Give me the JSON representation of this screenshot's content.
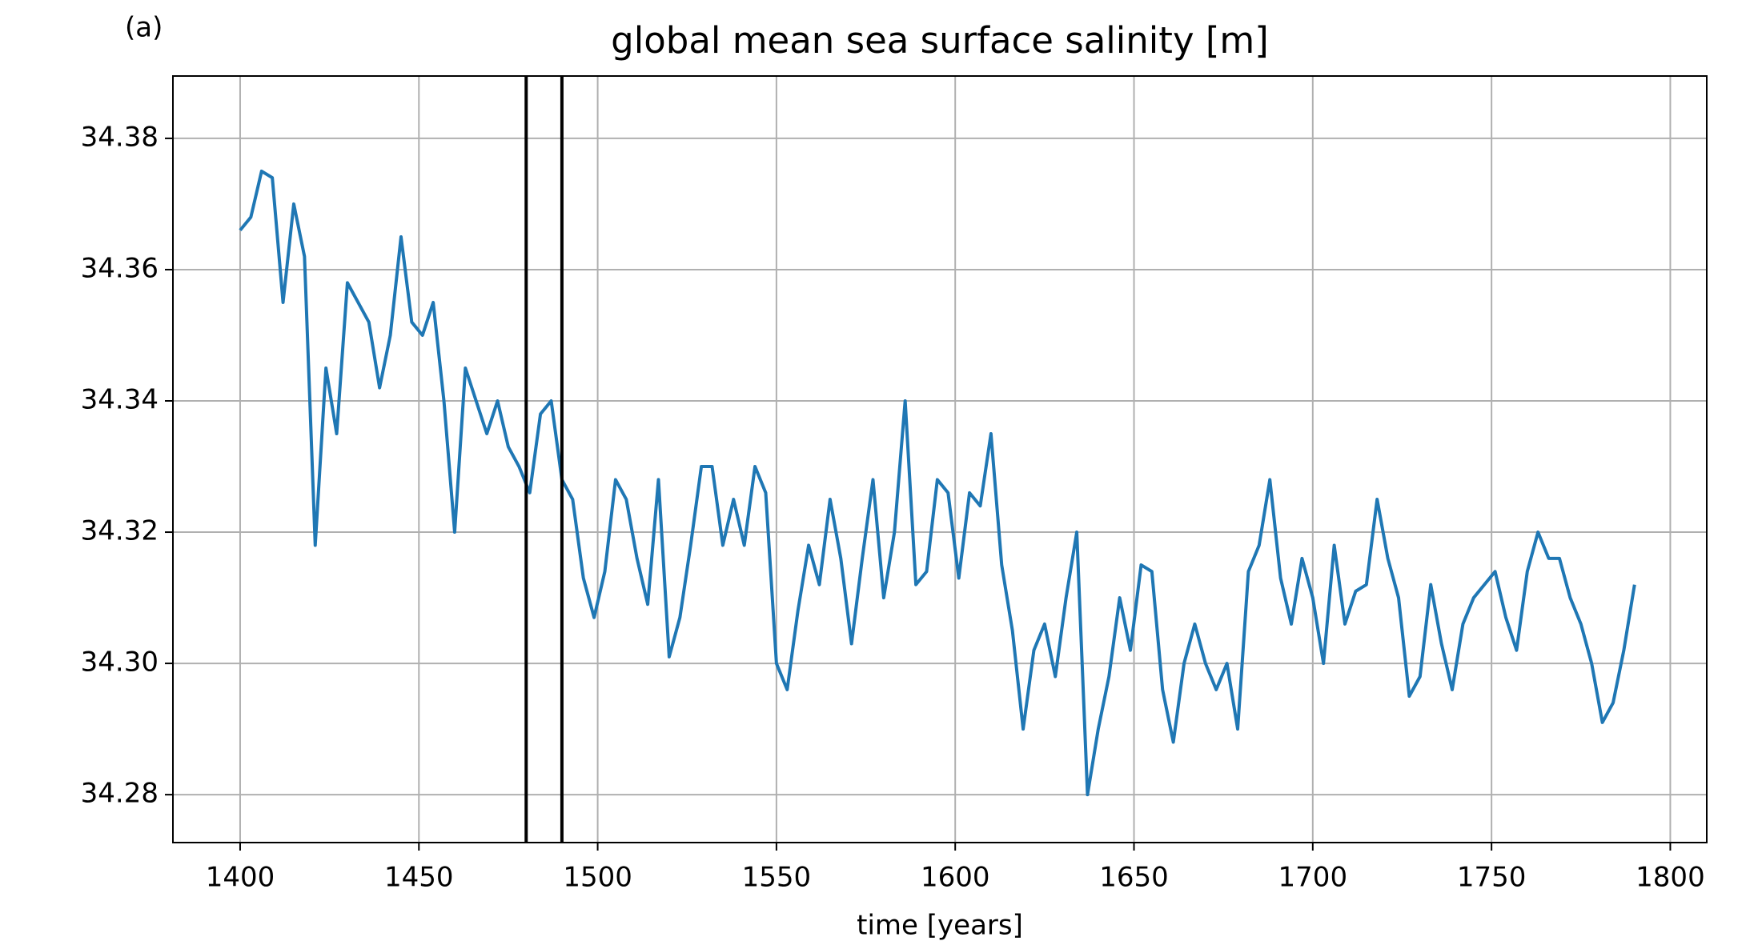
{
  "chart_data": {
    "type": "line",
    "title": "global mean sea surface salinity [m]",
    "annotation": "(a)",
    "xlabel": "time [years]",
    "x": [
      1400,
      1403,
      1406,
      1409,
      1412,
      1415,
      1418,
      1421,
      1424,
      1427,
      1430,
      1433,
      1436,
      1439,
      1442,
      1445,
      1448,
      1451,
      1454,
      1457,
      1460,
      1463,
      1466,
      1469,
      1472,
      1475,
      1478,
      1481,
      1484,
      1487,
      1490,
      1493,
      1496,
      1499,
      1502,
      1505,
      1508,
      1511,
      1514,
      1517,
      1520,
      1523,
      1526,
      1529,
      1532,
      1535,
      1538,
      1541,
      1544,
      1547,
      1550,
      1553,
      1556,
      1559,
      1562,
      1565,
      1568,
      1571,
      1574,
      1577,
      1580,
      1583,
      1586,
      1589,
      1592,
      1595,
      1598,
      1601,
      1604,
      1607,
      1610,
      1613,
      1616,
      1619,
      1622,
      1625,
      1628,
      1631,
      1634,
      1637,
      1640,
      1643,
      1646,
      1649,
      1652,
      1655,
      1658,
      1661,
      1664,
      1667,
      1670,
      1673,
      1676,
      1679,
      1682,
      1685,
      1688,
      1691,
      1694,
      1697,
      1700,
      1703,
      1706,
      1709,
      1712,
      1715,
      1718,
      1721,
      1724,
      1727,
      1730,
      1733,
      1736,
      1739,
      1742,
      1745,
      1748,
      1751,
      1754,
      1757,
      1760,
      1763,
      1766,
      1769,
      1772,
      1775,
      1778,
      1781,
      1784,
      1787,
      1790
    ],
    "values": [
      34.366,
      34.368,
      34.375,
      34.374,
      34.355,
      34.37,
      34.362,
      34.318,
      34.345,
      34.335,
      34.358,
      34.355,
      34.352,
      34.342,
      34.35,
      34.365,
      34.352,
      34.35,
      34.355,
      34.34,
      34.32,
      34.345,
      34.34,
      34.335,
      34.34,
      34.333,
      34.33,
      34.326,
      34.338,
      34.34,
      34.328,
      34.325,
      34.313,
      34.307,
      34.314,
      34.328,
      34.325,
      34.316,
      34.309,
      34.328,
      34.301,
      34.307,
      34.318,
      34.33,
      34.33,
      34.318,
      34.325,
      34.318,
      34.33,
      34.326,
      34.3,
      34.296,
      34.308,
      34.318,
      34.312,
      34.325,
      34.316,
      34.303,
      34.316,
      34.328,
      34.31,
      34.32,
      34.34,
      34.312,
      34.314,
      34.328,
      34.326,
      34.313,
      34.326,
      34.324,
      34.335,
      34.315,
      34.305,
      34.29,
      34.302,
      34.306,
      34.298,
      34.31,
      34.32,
      34.28,
      34.29,
      34.298,
      34.31,
      34.302,
      34.315,
      34.314,
      34.296,
      34.288,
      34.3,
      34.306,
      34.3,
      34.296,
      34.3,
      34.29,
      34.314,
      34.318,
      34.328,
      34.313,
      34.306,
      34.316,
      34.31,
      34.3,
      34.318,
      34.306,
      34.311,
      34.312,
      34.325,
      34.316,
      34.31,
      34.295,
      34.298,
      34.312,
      34.303,
      34.296,
      34.306,
      34.31,
      34.312,
      34.314,
      34.307,
      34.302,
      34.314,
      34.32,
      34.316,
      34.316,
      34.31,
      34.306,
      34.3,
      34.291,
      34.294,
      34.302,
      34.312
    ],
    "color": "#1f77b4",
    "vlines": [
      1480,
      1490
    ],
    "vline_color": "#000000",
    "xlim": [
      1381.2,
      1810.2
    ],
    "ylim": [
      34.2727,
      34.3895
    ],
    "xticks": [
      1400,
      1450,
      1500,
      1550,
      1600,
      1650,
      1700,
      1750,
      1800
    ],
    "yticks": [
      34.28,
      {
        "value": 34.3,
        "label": "34.30"
      },
      34.32,
      34.34,
      34.36,
      34.38
    ],
    "grid": true
  }
}
